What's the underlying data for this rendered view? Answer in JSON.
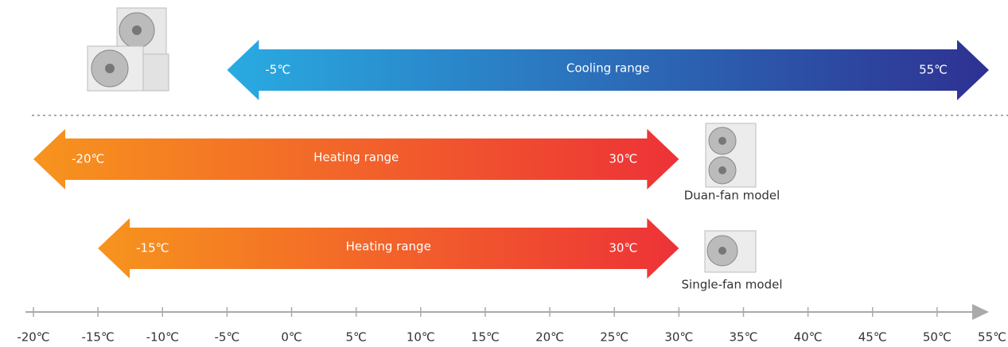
{
  "chart_data": {
    "type": "range",
    "xlim": [
      -20,
      55
    ],
    "xticks": [
      {
        "value": -20,
        "label": "-20℃"
      },
      {
        "value": -15,
        "label": "-15℃"
      },
      {
        "value": -10,
        "label": "-10℃"
      },
      {
        "value": -5,
        "label": "-5℃"
      },
      {
        "value": 0,
        "label": "0℃"
      },
      {
        "value": 5,
        "label": "5℃"
      },
      {
        "value": 10,
        "label": "10℃"
      },
      {
        "value": 15,
        "label": "15℃"
      },
      {
        "value": 20,
        "label": "20℃"
      },
      {
        "value": 25,
        "label": "25℃"
      },
      {
        "value": 30,
        "label": "30℃"
      },
      {
        "value": 35,
        "label": "35℃"
      },
      {
        "value": 40,
        "label": "40℃"
      },
      {
        "value": 45,
        "label": "45℃"
      },
      {
        "value": 50,
        "label": "50℃"
      },
      {
        "value": 55,
        "label": "55℃"
      }
    ],
    "series": [
      {
        "name": "Cooling range",
        "values": [
          -5,
          55
        ],
        "value_labels": [
          "-5℃",
          "55℃"
        ],
        "colors": [
          "#29abe2",
          "#2e3192"
        ]
      },
      {
        "name": "Heating range",
        "values": [
          -20,
          30
        ],
        "value_labels": [
          "-20℃",
          "30℃"
        ],
        "colors": [
          "#f7941d",
          "#ed3237"
        ],
        "model": "Duan-fan model"
      },
      {
        "name": "Heating range",
        "values": [
          -15,
          30
        ],
        "value_labels": [
          "-15℃",
          "30℃"
        ],
        "colors": [
          "#f7941d",
          "#ed3237"
        ],
        "model": "Single-fan model"
      }
    ]
  }
}
